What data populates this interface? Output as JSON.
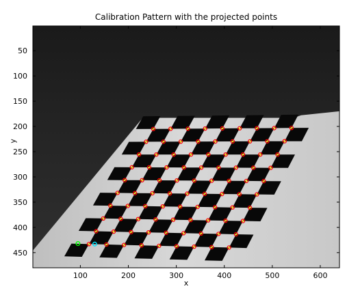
{
  "chart_data": {
    "type": "scatter",
    "title": "Calibration Pattern with the projected points",
    "xlabel": "x",
    "ylabel": "y",
    "xlim": [
      1,
      640
    ],
    "ylim": [
      480,
      1
    ],
    "y_reversed": true,
    "grid": false,
    "background_image": "grayscale photo of a checkerboard calibration pattern on a tilted board",
    "xticks": [
      100,
      200,
      300,
      400,
      500,
      600
    ],
    "yticks": [
      50,
      100,
      150,
      200,
      250,
      300,
      350,
      400,
      450
    ],
    "marker_colors": {
      "detected_corner": "#ff0000",
      "projected_point": "#ffd700",
      "origin_green": "#00ff00",
      "origin_cyan": "#00e5ff"
    },
    "grid_corners": {
      "top_left": [
        252,
        205
      ],
      "top_right": [
        540,
        203
      ],
      "bottom_left": [
        118,
        433
      ],
      "bottom_right": [
        410,
        440
      ],
      "cols": 9,
      "rows": 10
    },
    "special_points": [
      {
        "role": "origin_green",
        "x": 95,
        "y": 432
      },
      {
        "role": "origin_cyan",
        "x": 130,
        "y": 433
      }
    ]
  }
}
